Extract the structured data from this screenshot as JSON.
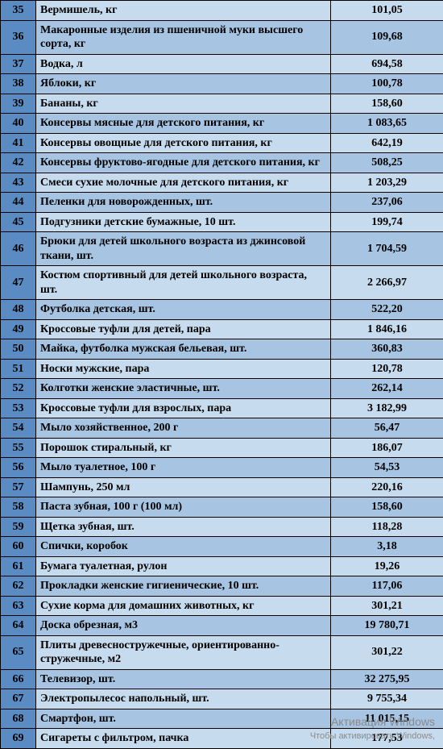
{
  "table": {
    "colors": {
      "header_blue": "#5a8bc2",
      "row_light": "#c7dbef",
      "row_dark": "#a7c5e3",
      "border": "#000000"
    },
    "columns": {
      "num_width": 44,
      "name_width": 366,
      "price_width": 140
    },
    "rows": [
      {
        "n": "35",
        "name": "Вермишель, кг",
        "price": "101,05"
      },
      {
        "n": "36",
        "name": "Макаронные изделия из пшеничной муки высшего сорта, кг",
        "price": "109,68"
      },
      {
        "n": "37",
        "name": "Водка, л",
        "price": "694,58"
      },
      {
        "n": "38",
        "name": "Яблоки, кг",
        "price": "100,78"
      },
      {
        "n": "39",
        "name": "Бананы, кг",
        "price": "158,60"
      },
      {
        "n": "40",
        "name": "Консервы мясные для детского питания, кг",
        "price": "1 083,65"
      },
      {
        "n": "41",
        "name": "Консервы овощные для детского питания, кг",
        "price": "642,19"
      },
      {
        "n": "42",
        "name": "Консервы фруктово-ягодные для детского питания, кг",
        "price": "508,25"
      },
      {
        "n": "43",
        "name": "Смеси сухие молочные для детского питания, кг",
        "price": "1 203,29"
      },
      {
        "n": "44",
        "name": "Пеленки для новорожденных, шт.",
        "price": "237,06"
      },
      {
        "n": "45",
        "name": "Подгузники детские бумажные, 10 шт.",
        "price": "199,74"
      },
      {
        "n": "46",
        "name": "Брюки для детей школьного возраста из джинсовой ткани, шт.",
        "price": "1 704,59"
      },
      {
        "n": "47",
        "name": "Костюм спортивный для детей школьного возраста, шт.",
        "price": "2 266,97"
      },
      {
        "n": "48",
        "name": "Футболка детская, шт.",
        "price": "522,20"
      },
      {
        "n": "49",
        "name": "Кроссовые туфли для детей, пара",
        "price": "1 846,16"
      },
      {
        "n": "50",
        "name": "Майка, футболка мужская бельевая, шт.",
        "price": "360,83"
      },
      {
        "n": "51",
        "name": "Носки мужские, пара",
        "price": "120,78"
      },
      {
        "n": "52",
        "name": "Колготки женские эластичные, шт.",
        "price": "262,14"
      },
      {
        "n": "53",
        "name": "Кроссовые туфли для взрослых, пара",
        "price": "3 182,99"
      },
      {
        "n": "54",
        "name": "Мыло хозяйственное, 200 г",
        "price": "56,47"
      },
      {
        "n": "55",
        "name": "Порошок стиральный, кг",
        "price": "186,07"
      },
      {
        "n": "56",
        "name": "Мыло туалетное, 100 г",
        "price": "54,53"
      },
      {
        "n": "57",
        "name": "Шампунь, 250 мл",
        "price": "220,16"
      },
      {
        "n": "58",
        "name": "Паста зубная, 100 г (100 мл)",
        "price": "158,60"
      },
      {
        "n": "59",
        "name": "Щетка зубная, шт.",
        "price": "118,28"
      },
      {
        "n": "60",
        "name": "Спички, коробок",
        "price": "3,18"
      },
      {
        "n": "61",
        "name": "Бумага туалетная, рулон",
        "price": "19,26"
      },
      {
        "n": "62",
        "name": "Прокладки женские гигиенические, 10 шт.",
        "price": "117,06"
      },
      {
        "n": "63",
        "name": "Сухие корма для домашних животных, кг",
        "price": "301,21"
      },
      {
        "n": "64",
        "name": "Доска обрезная, м3",
        "price": "19 780,71"
      },
      {
        "n": "65",
        "name": "Плиты древесностружечные, ориентированно-стружечные, м2",
        "price": "301,22"
      },
      {
        "n": "66",
        "name": "Телевизор, шт.",
        "price": "32 275,95"
      },
      {
        "n": "67",
        "name": "Электропылесос напольный, шт.",
        "price": "9 755,34"
      },
      {
        "n": "68",
        "name": "Смартфон, шт.",
        "price": "11 015,15"
      },
      {
        "n": "69",
        "name": "Сигареты с фильтром, пачка",
        "price": "177,53"
      }
    ]
  },
  "watermark": {
    "line1": "Активация Windows",
    "line2": "Чтобы активировать Windows,"
  }
}
